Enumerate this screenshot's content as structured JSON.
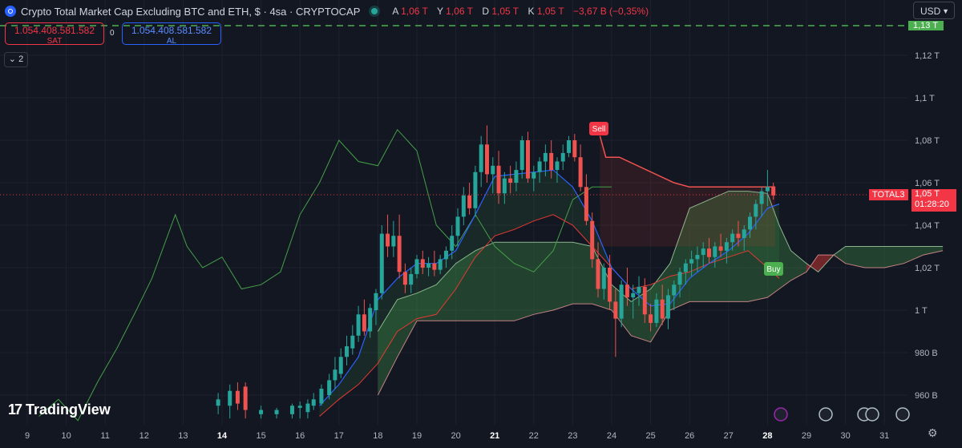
{
  "header": {
    "title": "Crypto Total Market Cap Excluding BTC and ETH, $ · 4sa · CRYPTOCAP",
    "ohlc": [
      {
        "key": "A",
        "value": "1,06 T"
      },
      {
        "key": "Y",
        "value": "1,06 T"
      },
      {
        "key": "D",
        "value": "1,05 T"
      },
      {
        "key": "K",
        "value": "1,05 T"
      }
    ],
    "change": "−3,67 B (−0,35%)"
  },
  "trade": {
    "sell_price": "1.054.408.581.582",
    "sell_label": "SAT",
    "spread": "0",
    "buy_price": "1.054.408.581.582",
    "buy_label": "AL"
  },
  "indicators": {
    "collapse_label": "2"
  },
  "currency": "USD",
  "branding": "TradingView",
  "symbol_tag": "TOTAL3",
  "last_price": "1,05 T",
  "countdown": "01:28:20",
  "top_tag": "1,13 T",
  "colors": {
    "background": "#131722",
    "up": "#26a69a",
    "down": "#ef5350",
    "tenkan": "#2962ff",
    "kijun": "#e53935",
    "lagging": "#43a047",
    "senkou_a": "#a5d6a7",
    "senkou_b": "#ef9a9a"
  },
  "chart_data": {
    "type": "candlestick",
    "interval": "4h",
    "x_tick_labels": [
      "9",
      "10",
      "11",
      "12",
      "13",
      "14",
      "15",
      "16",
      "17",
      "18",
      "19",
      "20",
      "21",
      "22",
      "23",
      "24",
      "25",
      "26",
      "27",
      "28",
      "29",
      "30",
      "31"
    ],
    "y_tick_labels": [
      "960 B",
      "980 B",
      "1 T",
      "1,02 T",
      "1,04 T",
      "1,06 T",
      "1,08 T",
      "1,1 T",
      "1,12 T"
    ],
    "y_ticks": [
      960,
      980,
      1000,
      1020,
      1040,
      1060,
      1080,
      1100,
      1120
    ],
    "y_unit": "B",
    "ylim": [
      949,
      1140
    ],
    "x_range": [
      9,
      32.6
    ],
    "current_price": 1054.4,
    "horizontal_line": 1133,
    "signals": [
      {
        "label": "Sell",
        "x": 23.7,
        "y": 1083
      },
      {
        "label": "Buy",
        "x": 28.2,
        "y": 1024
      }
    ],
    "candles": [
      {
        "t": 13.9,
        "o": 955,
        "h": 961,
        "l": 951,
        "c": 958
      },
      {
        "t": 14.2,
        "o": 955,
        "h": 965,
        "l": 949,
        "c": 962
      },
      {
        "t": 14.4,
        "o": 962,
        "h": 966,
        "l": 953,
        "c": 956
      },
      {
        "t": 14.6,
        "o": 964,
        "h": 966,
        "l": 949,
        "c": 953
      },
      {
        "t": 15.0,
        "o": 951,
        "h": 955,
        "l": 949,
        "c": 953
      },
      {
        "t": 15.4,
        "o": 951,
        "h": 954,
        "l": 949,
        "c": 953
      },
      {
        "t": 15.8,
        "o": 951,
        "h": 956,
        "l": 949,
        "c": 955
      },
      {
        "t": 16.0,
        "o": 954,
        "h": 957,
        "l": 949,
        "c": 955
      },
      {
        "t": 16.2,
        "o": 952,
        "h": 958,
        "l": 949,
        "c": 956
      },
      {
        "t": 16.35,
        "o": 955,
        "h": 961,
        "l": 953,
        "c": 958
      },
      {
        "t": 16.55,
        "o": 956,
        "h": 965,
        "l": 955,
        "c": 963
      },
      {
        "t": 16.75,
        "o": 960,
        "h": 970,
        "l": 958,
        "c": 967
      },
      {
        "t": 16.9,
        "o": 967,
        "h": 978,
        "l": 963,
        "c": 972
      },
      {
        "t": 17.05,
        "o": 970,
        "h": 982,
        "l": 968,
        "c": 978
      },
      {
        "t": 17.2,
        "o": 978,
        "h": 988,
        "l": 974,
        "c": 983
      },
      {
        "t": 17.35,
        "o": 982,
        "h": 993,
        "l": 979,
        "c": 988
      },
      {
        "t": 17.5,
        "o": 988,
        "h": 1002,
        "l": 985,
        "c": 998
      },
      {
        "t": 17.65,
        "o": 998,
        "h": 1005,
        "l": 988,
        "c": 990
      },
      {
        "t": 17.8,
        "o": 990,
        "h": 1003,
        "l": 987,
        "c": 1001
      },
      {
        "t": 17.95,
        "o": 1000,
        "h": 1010,
        "l": 993,
        "c": 1008
      },
      {
        "t": 18.1,
        "o": 1008,
        "h": 1040,
        "l": 1005,
        "c": 1036
      },
      {
        "t": 18.25,
        "o": 1036,
        "h": 1045,
        "l": 1025,
        "c": 1030
      },
      {
        "t": 18.4,
        "o": 1030,
        "h": 1042,
        "l": 1025,
        "c": 1035
      },
      {
        "t": 18.55,
        "o": 1035,
        "h": 1045,
        "l": 1015,
        "c": 1018
      },
      {
        "t": 18.7,
        "o": 1018,
        "h": 1022,
        "l": 1008,
        "c": 1012
      },
      {
        "t": 18.85,
        "o": 1012,
        "h": 1020,
        "l": 1008,
        "c": 1017
      },
      {
        "t": 19.0,
        "o": 1017,
        "h": 1026,
        "l": 1015,
        "c": 1024
      },
      {
        "t": 19.15,
        "o": 1024,
        "h": 1028,
        "l": 1017,
        "c": 1020
      },
      {
        "t": 19.3,
        "o": 1020,
        "h": 1025,
        "l": 1016,
        "c": 1022
      },
      {
        "t": 19.45,
        "o": 1022,
        "h": 1028,
        "l": 1016,
        "c": 1019
      },
      {
        "t": 19.6,
        "o": 1019,
        "h": 1026,
        "l": 1017,
        "c": 1024
      },
      {
        "t": 19.75,
        "o": 1024,
        "h": 1030,
        "l": 1020,
        "c": 1028
      },
      {
        "t": 19.9,
        "o": 1028,
        "h": 1040,
        "l": 1024,
        "c": 1035
      },
      {
        "t": 20.05,
        "o": 1035,
        "h": 1048,
        "l": 1030,
        "c": 1044
      },
      {
        "t": 20.2,
        "o": 1044,
        "h": 1058,
        "l": 1040,
        "c": 1054
      },
      {
        "t": 20.35,
        "o": 1054,
        "h": 1060,
        "l": 1045,
        "c": 1048
      },
      {
        "t": 20.5,
        "o": 1048,
        "h": 1068,
        "l": 1044,
        "c": 1065
      },
      {
        "t": 20.65,
        "o": 1065,
        "h": 1082,
        "l": 1058,
        "c": 1078
      },
      {
        "t": 20.8,
        "o": 1078,
        "h": 1087,
        "l": 1060,
        "c": 1064
      },
      {
        "t": 20.95,
        "o": 1064,
        "h": 1072,
        "l": 1055,
        "c": 1068
      },
      {
        "t": 21.1,
        "o": 1068,
        "h": 1075,
        "l": 1050,
        "c": 1055
      },
      {
        "t": 21.25,
        "o": 1055,
        "h": 1065,
        "l": 1050,
        "c": 1062
      },
      {
        "t": 21.4,
        "o": 1062,
        "h": 1068,
        "l": 1055,
        "c": 1060
      },
      {
        "t": 21.55,
        "o": 1060,
        "h": 1070,
        "l": 1056,
        "c": 1066
      },
      {
        "t": 21.7,
        "o": 1066,
        "h": 1082,
        "l": 1062,
        "c": 1080
      },
      {
        "t": 21.85,
        "o": 1080,
        "h": 1084,
        "l": 1060,
        "c": 1062
      },
      {
        "t": 22.0,
        "o": 1062,
        "h": 1068,
        "l": 1056,
        "c": 1065
      },
      {
        "t": 22.15,
        "o": 1065,
        "h": 1072,
        "l": 1060,
        "c": 1070
      },
      {
        "t": 22.3,
        "o": 1070,
        "h": 1078,
        "l": 1063,
        "c": 1074
      },
      {
        "t": 22.45,
        "o": 1074,
        "h": 1080,
        "l": 1062,
        "c": 1066
      },
      {
        "t": 22.6,
        "o": 1066,
        "h": 1072,
        "l": 1060,
        "c": 1070
      },
      {
        "t": 22.75,
        "o": 1070,
        "h": 1078,
        "l": 1066,
        "c": 1074
      },
      {
        "t": 22.9,
        "o": 1074,
        "h": 1082,
        "l": 1072,
        "c": 1080
      },
      {
        "t": 23.05,
        "o": 1080,
        "h": 1083,
        "l": 1070,
        "c": 1072
      },
      {
        "t": 23.2,
        "o": 1072,
        "h": 1078,
        "l": 1056,
        "c": 1058
      },
      {
        "t": 23.35,
        "o": 1058,
        "h": 1064,
        "l": 1040,
        "c": 1042
      },
      {
        "t": 23.5,
        "o": 1042,
        "h": 1046,
        "l": 1020,
        "c": 1024
      },
      {
        "t": 23.65,
        "o": 1024,
        "h": 1032,
        "l": 1006,
        "c": 1010
      },
      {
        "t": 23.8,
        "o": 1010,
        "h": 1022,
        "l": 1005,
        "c": 1020
      },
      {
        "t": 23.95,
        "o": 1020,
        "h": 1026,
        "l": 1000,
        "c": 1004
      },
      {
        "t": 24.1,
        "o": 1004,
        "h": 1010,
        "l": 978,
        "c": 996
      },
      {
        "t": 24.25,
        "o": 996,
        "h": 1014,
        "l": 992,
        "c": 1012
      },
      {
        "t": 24.4,
        "o": 1012,
        "h": 1020,
        "l": 1002,
        "c": 1006
      },
      {
        "t": 24.55,
        "o": 1006,
        "h": 1012,
        "l": 996,
        "c": 1008
      },
      {
        "t": 24.7,
        "o": 1008,
        "h": 1016,
        "l": 1002,
        "c": 1011
      },
      {
        "t": 24.85,
        "o": 1011,
        "h": 1015,
        "l": 994,
        "c": 998
      },
      {
        "t": 25.0,
        "o": 998,
        "h": 1003,
        "l": 990,
        "c": 994
      },
      {
        "t": 25.15,
        "o": 994,
        "h": 1008,
        "l": 992,
        "c": 1005
      },
      {
        "t": 25.3,
        "o": 1005,
        "h": 1012,
        "l": 993,
        "c": 996
      },
      {
        "t": 25.45,
        "o": 996,
        "h": 1010,
        "l": 991,
        "c": 1007
      },
      {
        "t": 25.6,
        "o": 1007,
        "h": 1014,
        "l": 1000,
        "c": 1012
      },
      {
        "t": 25.75,
        "o": 1012,
        "h": 1020,
        "l": 1006,
        "c": 1018
      },
      {
        "t": 25.9,
        "o": 1018,
        "h": 1024,
        "l": 1012,
        "c": 1022
      },
      {
        "t": 26.05,
        "o": 1022,
        "h": 1028,
        "l": 1016,
        "c": 1024
      },
      {
        "t": 26.2,
        "o": 1024,
        "h": 1030,
        "l": 1018,
        "c": 1026
      },
      {
        "t": 26.35,
        "o": 1026,
        "h": 1032,
        "l": 1020,
        "c": 1029
      },
      {
        "t": 26.5,
        "o": 1029,
        "h": 1034,
        "l": 1022,
        "c": 1025
      },
      {
        "t": 26.65,
        "o": 1025,
        "h": 1032,
        "l": 1020,
        "c": 1030
      },
      {
        "t": 26.8,
        "o": 1030,
        "h": 1036,
        "l": 1025,
        "c": 1028
      },
      {
        "t": 26.95,
        "o": 1028,
        "h": 1034,
        "l": 1022,
        "c": 1032
      },
      {
        "t": 27.1,
        "o": 1032,
        "h": 1038,
        "l": 1028,
        "c": 1036
      },
      {
        "t": 27.25,
        "o": 1036,
        "h": 1042,
        "l": 1030,
        "c": 1034
      },
      {
        "t": 27.4,
        "o": 1034,
        "h": 1040,
        "l": 1028,
        "c": 1038
      },
      {
        "t": 27.55,
        "o": 1038,
        "h": 1046,
        "l": 1034,
        "c": 1044
      },
      {
        "t": 27.7,
        "o": 1044,
        "h": 1052,
        "l": 1038,
        "c": 1050
      },
      {
        "t": 27.85,
        "o": 1050,
        "h": 1058,
        "l": 1044,
        "c": 1056
      },
      {
        "t": 28.0,
        "o": 1056,
        "h": 1066,
        "l": 1049,
        "c": 1058
      },
      {
        "t": 28.15,
        "o": 1058,
        "h": 1060,
        "l": 1052,
        "c": 1054
      }
    ],
    "tenkan": [
      [
        16.5,
        955
      ],
      [
        17.0,
        965
      ],
      [
        17.5,
        978
      ],
      [
        18.0,
        1005
      ],
      [
        18.5,
        1015
      ],
      [
        19.0,
        1022
      ],
      [
        19.5,
        1022
      ],
      [
        20.0,
        1028
      ],
      [
        20.5,
        1045
      ],
      [
        21.0,
        1063
      ],
      [
        21.5,
        1064
      ],
      [
        22.0,
        1065
      ],
      [
        22.5,
        1066
      ],
      [
        23.0,
        1058
      ],
      [
        23.5,
        1042
      ],
      [
        24.0,
        1020
      ],
      [
        24.5,
        1010
      ],
      [
        25.0,
        1002
      ],
      [
        25.5,
        1003
      ],
      [
        26.0,
        1015
      ],
      [
        26.5,
        1022
      ],
      [
        27.0,
        1028
      ],
      [
        27.5,
        1036
      ],
      [
        28.0,
        1048
      ],
      [
        28.3,
        1050
      ]
    ],
    "kijun": [
      [
        16.5,
        950
      ],
      [
        17.0,
        958
      ],
      [
        17.5,
        965
      ],
      [
        18.0,
        975
      ],
      [
        18.5,
        990
      ],
      [
        19.0,
        996
      ],
      [
        19.5,
        998
      ],
      [
        20.0,
        1010
      ],
      [
        20.5,
        1025
      ],
      [
        21.0,
        1035
      ],
      [
        21.5,
        1038
      ],
      [
        22.0,
        1042
      ],
      [
        22.5,
        1045
      ],
      [
        23.0,
        1040
      ],
      [
        23.5,
        1030
      ],
      [
        24.0,
        1020
      ],
      [
        24.5,
        1010
      ],
      [
        25.0,
        1012
      ],
      [
        25.5,
        1016
      ],
      [
        26.0,
        1018
      ],
      [
        26.5,
        1022
      ],
      [
        27.0,
        1025
      ],
      [
        27.5,
        1028
      ],
      [
        28.0,
        1020
      ],
      [
        28.3,
        1015
      ]
    ],
    "chikou": [
      [
        9.3,
        950
      ],
      [
        9.8,
        958
      ],
      [
        10.3,
        948
      ],
      [
        10.8,
        966
      ],
      [
        11.3,
        982
      ],
      [
        11.8,
        1000
      ],
      [
        12.2,
        1015
      ],
      [
        12.8,
        1045
      ],
      [
        13.1,
        1030
      ],
      [
        13.5,
        1020
      ],
      [
        14.0,
        1025
      ],
      [
        14.5,
        1010
      ],
      [
        15.0,
        1012
      ],
      [
        15.5,
        1018
      ],
      [
        16.0,
        1045
      ],
      [
        16.5,
        1060
      ],
      [
        17.0,
        1080
      ],
      [
        17.5,
        1070
      ],
      [
        18.0,
        1068
      ],
      [
        18.5,
        1085
      ],
      [
        19.0,
        1075
      ],
      [
        19.5,
        1040
      ],
      [
        20.0,
        1030
      ],
      [
        20.5,
        1045
      ],
      [
        21.0,
        1030
      ],
      [
        21.5,
        1022
      ],
      [
        22.0,
        1018
      ],
      [
        22.5,
        1028
      ],
      [
        23.0,
        1052
      ],
      [
        23.5,
        1058
      ],
      [
        24.0,
        1058
      ]
    ],
    "senkou_a": [
      [
        18.0,
        990
      ],
      [
        18.5,
        1005
      ],
      [
        19.0,
        1008
      ],
      [
        19.5,
        1012
      ],
      [
        20.0,
        1022
      ],
      [
        20.5,
        1028
      ],
      [
        21.0,
        1032
      ],
      [
        21.5,
        1032
      ],
      [
        22.0,
        1032
      ],
      [
        22.5,
        1032
      ],
      [
        23.0,
        1032
      ],
      [
        23.5,
        1030
      ],
      [
        24.0,
        1012
      ],
      [
        24.5,
        1004
      ],
      [
        25.0,
        1010
      ],
      [
        25.5,
        1022
      ],
      [
        26.0,
        1048
      ],
      [
        26.5,
        1052
      ],
      [
        27.0,
        1056
      ],
      [
        27.5,
        1056
      ],
      [
        28.0,
        1055
      ],
      [
        28.3,
        1040
      ],
      [
        28.6,
        1028
      ],
      [
        29.0,
        1022
      ],
      [
        29.3,
        1018
      ],
      [
        29.7,
        1026
      ],
      [
        30.0,
        1030
      ],
      [
        30.5,
        1030
      ],
      [
        31.0,
        1030
      ],
      [
        31.5,
        1030
      ],
      [
        32.0,
        1030
      ],
      [
        32.5,
        1030
      ]
    ],
    "senkou_b": [
      [
        18.0,
        960
      ],
      [
        18.5,
        978
      ],
      [
        19.0,
        995
      ],
      [
        19.5,
        995
      ],
      [
        20.0,
        995
      ],
      [
        20.5,
        995
      ],
      [
        21.0,
        995
      ],
      [
        21.5,
        995
      ],
      [
        22.0,
        998
      ],
      [
        22.5,
        1000
      ],
      [
        23.0,
        1003
      ],
      [
        23.5,
        1003
      ],
      [
        24.0,
        1000
      ],
      [
        24.5,
        988
      ],
      [
        25.0,
        985
      ],
      [
        25.5,
        1000
      ],
      [
        26.0,
        1004
      ],
      [
        26.5,
        1004
      ],
      [
        27.0,
        1004
      ],
      [
        27.5,
        1004
      ],
      [
        28.0,
        1006
      ],
      [
        28.3,
        1010
      ],
      [
        28.6,
        1014
      ],
      [
        29.0,
        1018
      ],
      [
        29.3,
        1026
      ],
      [
        29.7,
        1026
      ],
      [
        30.0,
        1022
      ],
      [
        30.5,
        1020
      ],
      [
        31.0,
        1020
      ],
      [
        31.5,
        1022
      ],
      [
        32.0,
        1026
      ],
      [
        32.5,
        1028
      ]
    ],
    "stop_line": [
      [
        23.7,
        1082
      ],
      [
        23.85,
        1072
      ],
      [
        24.2,
        1072
      ],
      [
        25.6,
        1060
      ],
      [
        26.0,
        1058
      ],
      [
        28.2,
        1058
      ]
    ]
  }
}
